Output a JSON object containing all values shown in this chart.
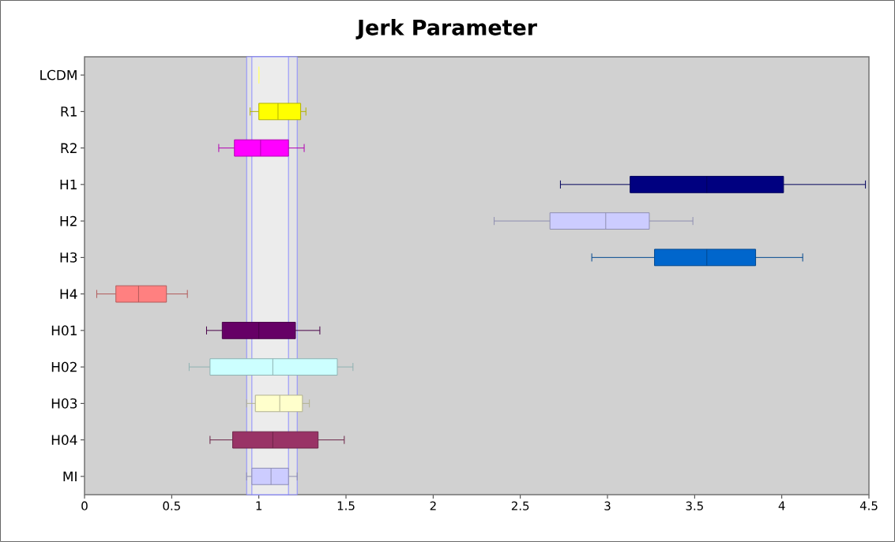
{
  "chart_data": {
    "type": "box",
    "title": "Jerk Parameter",
    "orientation": "horizontal",
    "categories": [
      "LCDM",
      "R1",
      "R2",
      "H1",
      "H2",
      "H3",
      "H4",
      "H01",
      "H02",
      "H03",
      "H04",
      "MI"
    ],
    "colors": [
      "#ffff80",
      "#ffff00",
      "#ff00ff",
      "#000080",
      "#ccccff",
      "#0066cc",
      "#ff8080",
      "#660066",
      "#ccffff",
      "#ffffcc",
      "#993366",
      "#ccccff"
    ],
    "boxes": [
      {
        "low": 1.0,
        "q1": 1.0,
        "median": 1.0,
        "q3": 1.0,
        "high": 1.0
      },
      {
        "low": 0.95,
        "q1": 1.0,
        "median": 1.11,
        "q3": 1.24,
        "high": 1.27
      },
      {
        "low": 0.77,
        "q1": 0.86,
        "median": 1.01,
        "q3": 1.17,
        "high": 1.26
      },
      {
        "low": 2.73,
        "q1": 3.13,
        "median": 3.57,
        "q3": 4.01,
        "high": 4.48
      },
      {
        "low": 2.35,
        "q1": 2.67,
        "median": 2.99,
        "q3": 3.24,
        "high": 3.49
      },
      {
        "low": 2.91,
        "q1": 3.27,
        "median": 3.57,
        "q3": 3.85,
        "high": 4.12
      },
      {
        "low": 0.07,
        "q1": 0.18,
        "median": 0.31,
        "q3": 0.47,
        "high": 0.59
      },
      {
        "low": 0.7,
        "q1": 0.79,
        "median": 1.0,
        "q3": 1.21,
        "high": 1.35
      },
      {
        "low": 0.6,
        "q1": 0.72,
        "median": 1.08,
        "q3": 1.45,
        "high": 1.54
      },
      {
        "low": 0.93,
        "q1": 0.98,
        "median": 1.12,
        "q3": 1.25,
        "high": 1.29
      },
      {
        "low": 0.72,
        "q1": 0.85,
        "median": 1.08,
        "q3": 1.34,
        "high": 1.49
      },
      {
        "low": 0.93,
        "q1": 0.96,
        "median": 1.07,
        "q3": 1.17,
        "high": 1.22
      }
    ],
    "xlim": [
      0,
      4.5
    ],
    "xticks": [
      0,
      0.5,
      1,
      1.5,
      2,
      2.5,
      3,
      3.5,
      4,
      4.5
    ],
    "bands": [
      {
        "axis": "x",
        "from": 0.93,
        "to": 1.22,
        "color": "#e4e4e4"
      },
      {
        "axis": "x",
        "from": 0.96,
        "to": 1.17,
        "color": "#ececec"
      }
    ]
  }
}
